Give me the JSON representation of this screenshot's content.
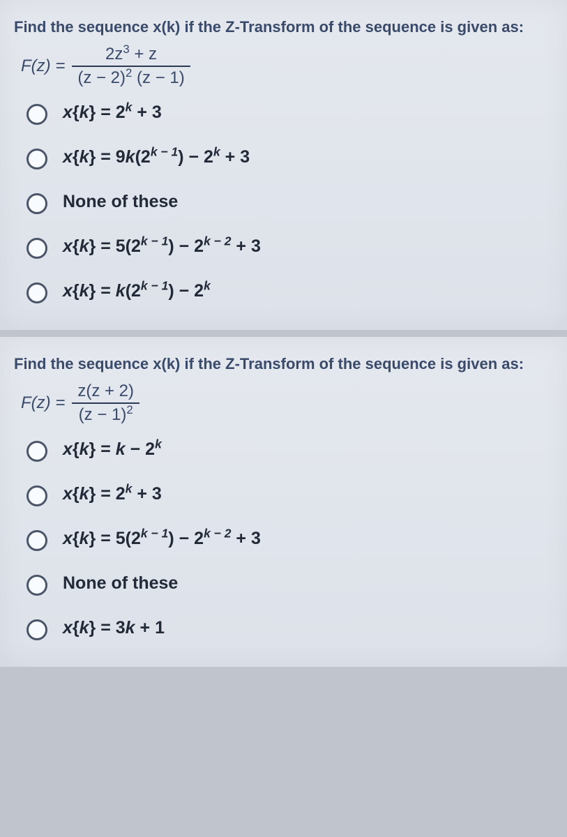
{
  "question1": {
    "prompt": "Find the sequence x(k) if the Z-Transform of the sequence is given as:",
    "formula": {
      "lhs": "F(z) =",
      "numerator_html": "2z<sup>3</sup> + z",
      "denominator_html": "(z − 2)<sup>2</sup> (z − 1)"
    },
    "options": [
      {
        "html": "<span class='xi'>x</span>{<span class='xi'>k</span>} = 2<sup>k</sup> + 3"
      },
      {
        "html": "<span class='xi'>x</span>{<span class='xi'>k</span>} = 9<span class='xi'>k</span>(2<sup>k − 1</sup>) − 2<sup>k</sup> + 3"
      },
      {
        "html": "None of these"
      },
      {
        "html": "<span class='xi'>x</span>{<span class='xi'>k</span>} = 5(2<sup>k − 1</sup>) − 2<sup>k − 2</sup> + 3"
      },
      {
        "html": "<span class='xi'>x</span>{<span class='xi'>k</span>} = <span class='xi'>k</span>(2<sup>k − 1</sup>) − 2<sup>k</sup>"
      }
    ]
  },
  "question2": {
    "prompt": "Find the sequence x(k) if the Z-Transform of the sequence is given as:",
    "formula": {
      "lhs": "F(z) =",
      "numerator_html": "z(z + 2)",
      "denominator_html": "(z − 1)<sup>2</sup>"
    },
    "options": [
      {
        "html": "<span class='xi'>x</span>{<span class='xi'>k</span>} = <span class='xi'>k</span> − 2<sup>k</sup>"
      },
      {
        "html": "<span class='xi'>x</span>{<span class='xi'>k</span>} = 2<sup>k</sup> + 3"
      },
      {
        "html": "<span class='xi'>x</span>{<span class='xi'>k</span>} = 5(2<sup>k − 1</sup>) − 2<sup>k − 2</sup> + 3"
      },
      {
        "html": "None of these"
      },
      {
        "html": "<span class='xi'>x</span>{<span class='xi'>k</span>} = 3<span class='xi'>k</span> + 1"
      }
    ]
  }
}
